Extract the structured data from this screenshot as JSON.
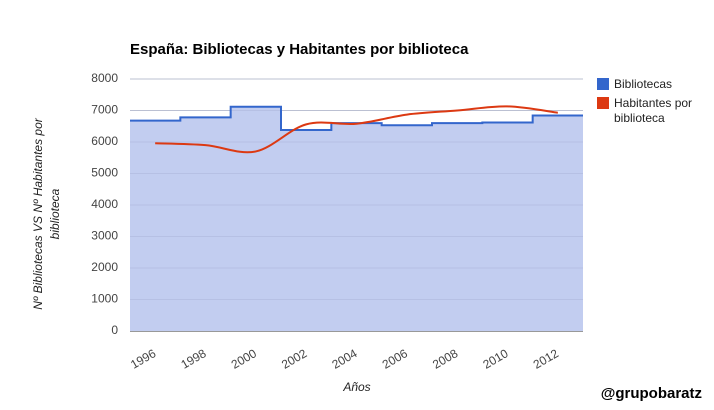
{
  "chart_data": {
    "type": "stepped-area-line",
    "title": "España: Bibliotecas y Habitantes por biblioteca",
    "x_label": "Años",
    "y_label": "Nº Bibliotecas VS Nº Habitantes por biblioteca",
    "categories": [
      "1996",
      "1998",
      "2000",
      "2002",
      "2004",
      "2006",
      "2008",
      "2010",
      "2012"
    ],
    "series": [
      {
        "name": "Bibliotecas",
        "color": "#3366cc",
        "fill": "#c2cdf0",
        "values": [
          6680,
          6780,
          7120,
          6380,
          6600,
          6530,
          6600,
          6620,
          6840
        ]
      },
      {
        "name": "Habitantes por biblioteca",
        "color": "#dc3912",
        "values": [
          5960,
          5900,
          5700,
          6560,
          6580,
          6870,
          7000,
          7130,
          6930
        ]
      }
    ],
    "ylim": [
      0,
      8000
    ],
    "yticks": [
      0,
      1000,
      2000,
      3000,
      4000,
      5000,
      6000,
      7000,
      8000
    ],
    "grid": true,
    "legend": "right",
    "watermark": "@grupobaratz"
  }
}
